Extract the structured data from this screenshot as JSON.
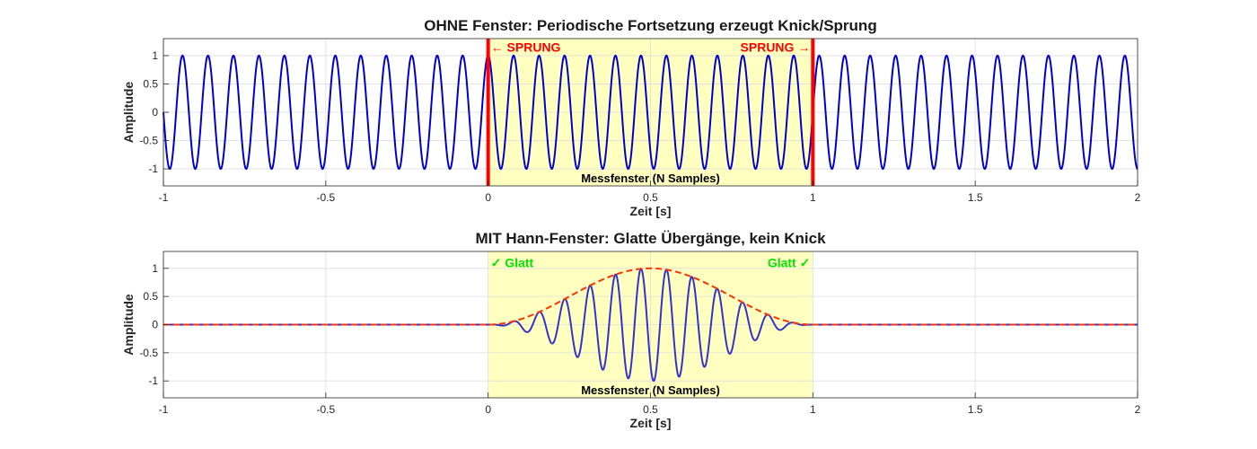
{
  "chart_data": [
    {
      "type": "line",
      "title": "OHNE Fenster: Periodische Fortsetzung erzeugt Knick/Sprung",
      "xlabel": "Zeit [s]",
      "ylabel": "Amplitude",
      "xlim": [
        -1,
        2
      ],
      "ylim": [
        -1.3,
        1.3
      ],
      "xticks": [
        "-1",
        "-0.5",
        "0",
        "0.5",
        "1",
        "1.5",
        "2"
      ],
      "yticks": [
        "-1",
        "-0.5",
        "0",
        "0.5",
        "1"
      ],
      "grid": true,
      "signal": {
        "function": "sin",
        "frequency_hz": 12.75,
        "phase_rad": 1.5708,
        "color": "#0000cc"
      },
      "window": {
        "x": [
          0,
          1
        ],
        "color": "#ffffc0",
        "label": "Messfenster (N Samples)"
      },
      "boundaries": {
        "x": [
          0,
          1
        ],
        "color": "#ff0000"
      },
      "annotations": [
        {
          "text": "← SPRUNG",
          "x": 0,
          "y": 1.15,
          "color": "#ff0000"
        },
        {
          "text": "SPRUNG →",
          "x": 1,
          "y": 1.15,
          "color": "#ff0000"
        }
      ]
    },
    {
      "type": "line",
      "title": "MIT Hann-Fenster: Glatte Übergänge, kein Knick",
      "xlabel": "Zeit [s]",
      "ylabel": "Amplitude",
      "xlim": [
        -1,
        2
      ],
      "ylim": [
        -1.3,
        1.3
      ],
      "xticks": [
        "-1",
        "-0.5",
        "0",
        "0.5",
        "1",
        "1.5",
        "2"
      ],
      "yticks": [
        "-1",
        "-0.5",
        "0",
        "0.5",
        "1"
      ],
      "grid": true,
      "signal": {
        "function": "sin",
        "frequency_hz": 12.75,
        "phase_rad": 1.5708,
        "window": "hann",
        "window_x": [
          0,
          1
        ],
        "color": "#3333cc"
      },
      "envelope": {
        "function": "hann",
        "x": [
          0,
          1
        ],
        "color": "#ff3300",
        "style": "dashed"
      },
      "window": {
        "x": [
          0,
          1
        ],
        "color": "#ffffc0",
        "label": "Messfenster (N Samples)"
      },
      "annotations": [
        {
          "text": "✓ Glatt",
          "x": 0,
          "y": 1.1,
          "color": "#00e600"
        },
        {
          "text": "Glatt ✓",
          "x": 1,
          "y": 1.1,
          "color": "#00e600"
        }
      ]
    }
  ]
}
